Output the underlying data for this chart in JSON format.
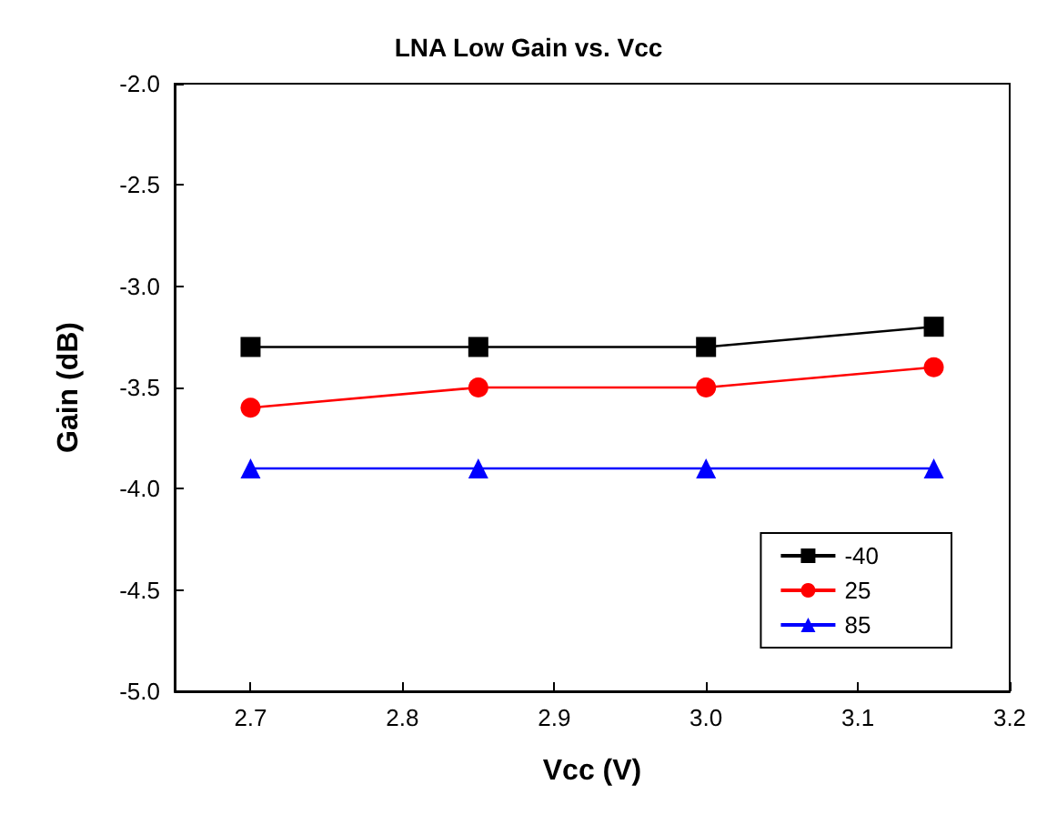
{
  "chart_data": {
    "type": "line",
    "title": "LNA Low Gain vs. Vcc",
    "xlabel": "Vcc (V)",
    "ylabel": "Gain (dB)",
    "x": [
      2.7,
      2.85,
      3.0,
      3.15
    ],
    "series": [
      {
        "name": "-40",
        "color": "#000000",
        "marker": "square",
        "values": [
          -3.3,
          -3.3,
          -3.3,
          -3.2
        ]
      },
      {
        "name": "25",
        "color": "#ff0000",
        "marker": "circle",
        "values": [
          -3.6,
          -3.5,
          -3.5,
          -3.4
        ]
      },
      {
        "name": "85",
        "color": "#0000ff",
        "marker": "triangle",
        "values": [
          -3.9,
          -3.9,
          -3.9,
          -3.9
        ]
      }
    ],
    "xlim": [
      2.65,
      3.2
    ],
    "xticks": [
      {
        "value": 2.7,
        "label": "2.7"
      },
      {
        "value": 2.8,
        "label": "2.8"
      },
      {
        "value": 2.9,
        "label": "2.9"
      },
      {
        "value": 3.0,
        "label": "3.0"
      },
      {
        "value": 3.1,
        "label": "3.1"
      },
      {
        "value": 3.2,
        "label": "3.2"
      }
    ],
    "ylim": [
      -5,
      -2
    ],
    "yticks": [
      {
        "value": -5,
        "label": "-5.0"
      },
      {
        "value": -4.5,
        "label": "-4.5"
      },
      {
        "value": -4,
        "label": "-4.0"
      },
      {
        "value": -3.5,
        "label": "-3.5"
      },
      {
        "value": -3,
        "label": "-3.0"
      },
      {
        "value": -2.5,
        "label": "-2.5"
      },
      {
        "value": -2,
        "label": "-2.0"
      }
    ],
    "grid": false,
    "legend": "bottom right",
    "line_style": "solid"
  }
}
